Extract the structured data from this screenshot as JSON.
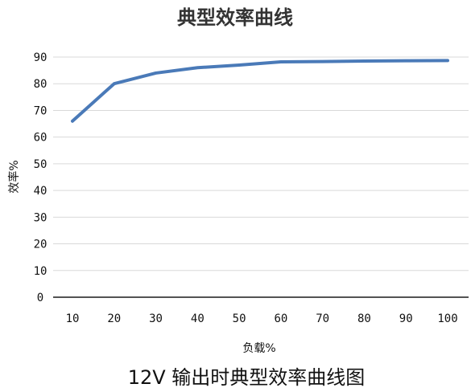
{
  "caption": "12V 输出时典型效率曲线图",
  "chart_data": {
    "type": "line",
    "title": "典型效率曲线",
    "xlabel": "负载%",
    "ylabel": "效率%",
    "categories": [
      "10",
      "20",
      "30",
      "40",
      "50",
      "60",
      "70",
      "80",
      "90",
      "100"
    ],
    "series": [
      {
        "values": [
          66,
          80,
          84,
          86,
          87,
          88.2,
          88.3,
          88.5,
          88.6,
          88.7
        ]
      }
    ],
    "ylim": [
      0,
      90
    ],
    "yticks": [
      0,
      10,
      20,
      30,
      40,
      50,
      60,
      70,
      80,
      90
    ],
    "grid": true,
    "legend": "none",
    "colors": {
      "line": "#4a7ab8",
      "grid": "#d9d9d9",
      "axis": "#1a1a1a"
    }
  }
}
